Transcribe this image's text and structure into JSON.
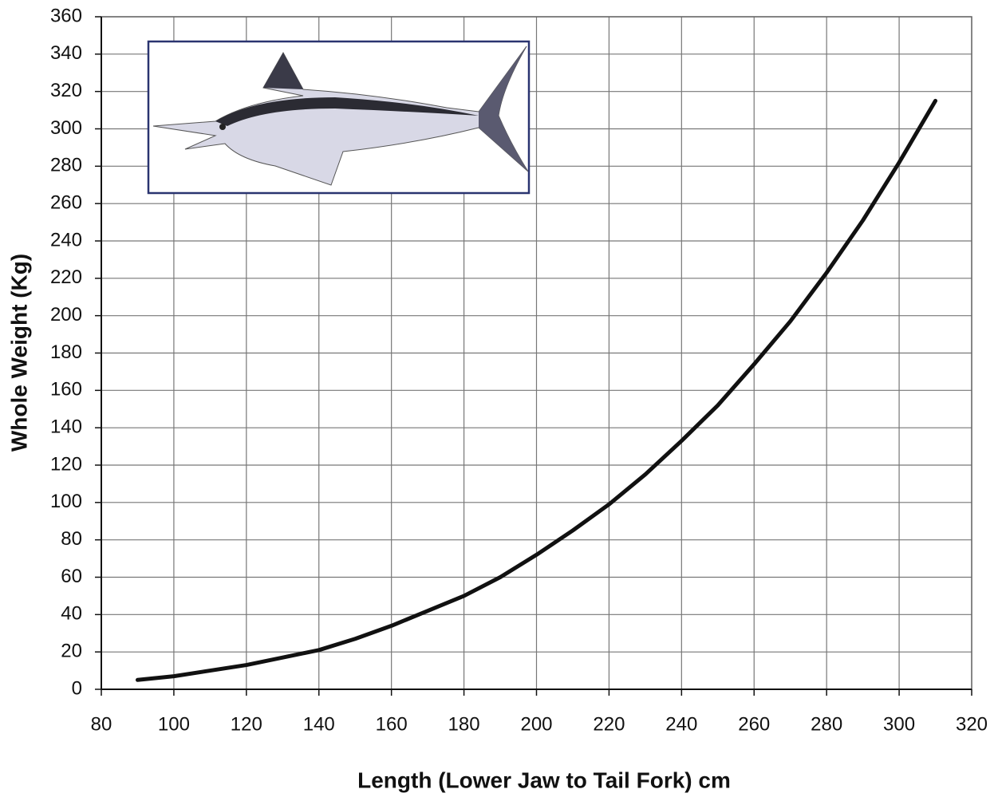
{
  "chart_data": {
    "type": "line",
    "xlabel": "Length (Lower Jaw to Tail Fork) cm",
    "ylabel": "Whole Weight (Kg)",
    "x": [
      90,
      100,
      110,
      120,
      130,
      140,
      150,
      160,
      170,
      180,
      190,
      200,
      210,
      220,
      230,
      240,
      250,
      260,
      270,
      280,
      290,
      300,
      310
    ],
    "series": [
      {
        "color": "#111111",
        "values": [
          5,
          7,
          10,
          13,
          17,
          21,
          27,
          34,
          42,
          50,
          60,
          72,
          85,
          99,
          115,
          133,
          152,
          174,
          197,
          223,
          251,
          282,
          315
        ]
      }
    ],
    "xlim": [
      80,
      320
    ],
    "xticks": [
      80,
      100,
      120,
      140,
      160,
      180,
      200,
      220,
      240,
      260,
      280,
      300,
      320
    ],
    "ylim": [
      0,
      360
    ],
    "yticks": [
      0,
      20,
      40,
      60,
      80,
      100,
      120,
      140,
      160,
      180,
      200,
      220,
      240,
      260,
      280,
      300,
      320,
      340,
      360
    ],
    "grid": true
  }
}
